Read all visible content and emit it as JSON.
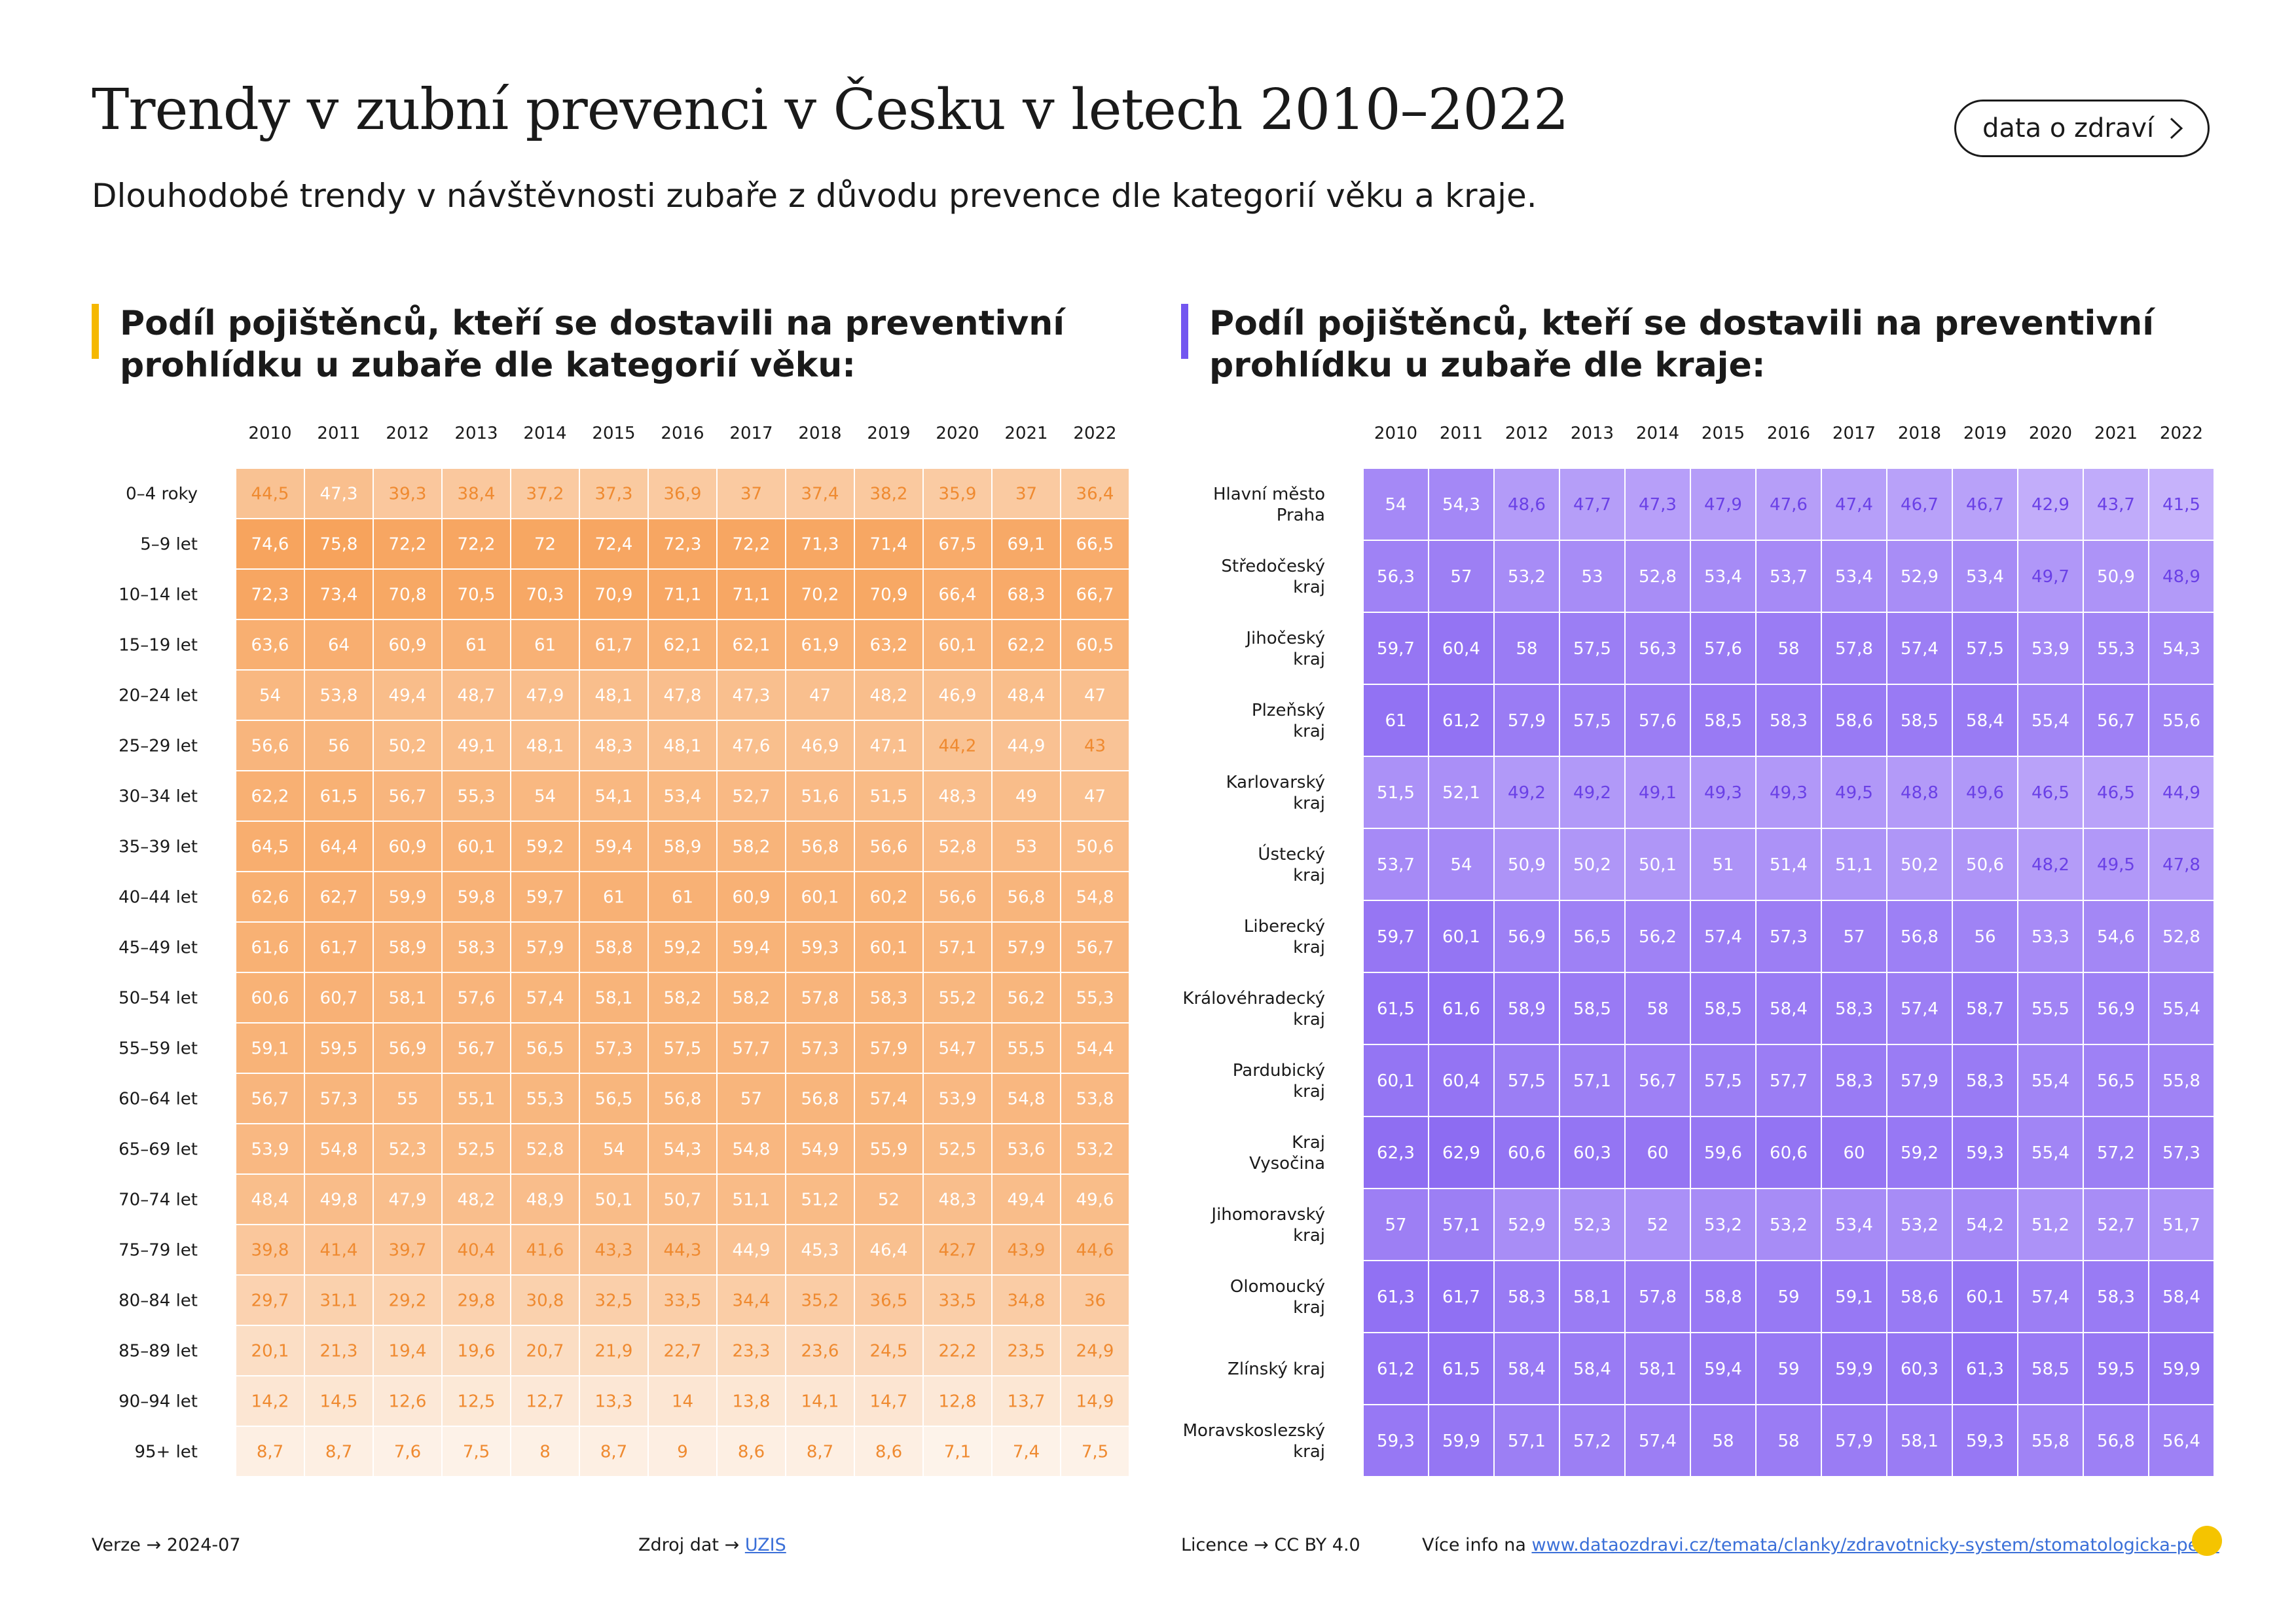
{
  "title": "Trendy v zubní prevenci v Česku v letech 2010–2022",
  "subtitle": "Dlouhodobé trendy v návštěvnosti zubaře z důvodu prevence dle kategorií věku a kraje.",
  "brand_button": {
    "label": "data o zdraví",
    "icon": "chevron-right-icon"
  },
  "colors": {
    "left_accent": "#f5b800",
    "right_accent": "#7356f0",
    "left_dark": "#f7a35c",
    "left_light": "#fdf3ea",
    "left_text_dark": "#ffffff",
    "left_text_light": "#ef8a30",
    "right_dark": "#8d6cf2",
    "right_light": "#c6b2fb",
    "right_text_dark": "#ffffff",
    "right_text_light": "#6a40e6"
  },
  "chart_data": [
    {
      "type": "heatmap",
      "title": "Podíl pojištěnců, kteří se dostavili na preventivní prohlídku u zubaře dle kategorií věku:",
      "x": [
        "2010",
        "2011",
        "2012",
        "2013",
        "2014",
        "2015",
        "2016",
        "2017",
        "2018",
        "2019",
        "2020",
        "2021",
        "2022"
      ],
      "y": [
        "0–4 roky",
        "5–9 let",
        "10–14 let",
        "15–19 let",
        "20–24 let",
        "25–29 let",
        "30–34 let",
        "35–39 let",
        "40–44 let",
        "45–49 let",
        "50–54 let",
        "55–59 let",
        "60–64 let",
        "65–69 let",
        "70–74 let",
        "75–79 let",
        "80–84 let",
        "85–89 let",
        "90–94 let",
        "95+ let"
      ],
      "values": [
        [
          "44,5",
          "47,3",
          "39,3",
          "38,4",
          "37,2",
          "37,3",
          "36,9",
          "37",
          "37,4",
          "38,2",
          "35,9",
          "37",
          "36,4"
        ],
        [
          "74,6",
          "75,8",
          "72,2",
          "72,2",
          "72",
          "72,4",
          "72,3",
          "72,2",
          "71,3",
          "71,4",
          "67,5",
          "69,1",
          "66,5"
        ],
        [
          "72,3",
          "73,4",
          "70,8",
          "70,5",
          "70,3",
          "70,9",
          "71,1",
          "71,1",
          "70,2",
          "70,9",
          "66,4",
          "68,3",
          "66,7"
        ],
        [
          "63,6",
          "64",
          "60,9",
          "61",
          "61",
          "61,7",
          "62,1",
          "62,1",
          "61,9",
          "63,2",
          "60,1",
          "62,2",
          "60,5"
        ],
        [
          "54",
          "53,8",
          "49,4",
          "48,7",
          "47,9",
          "48,1",
          "47,8",
          "47,3",
          "47",
          "48,2",
          "46,9",
          "48,4",
          "47"
        ],
        [
          "56,6",
          "56",
          "50,2",
          "49,1",
          "48,1",
          "48,3",
          "48,1",
          "47,6",
          "46,9",
          "47,1",
          "44,2",
          "44,9",
          "43"
        ],
        [
          "62,2",
          "61,5",
          "56,7",
          "55,3",
          "54",
          "54,1",
          "53,4",
          "52,7",
          "51,6",
          "51,5",
          "48,3",
          "49",
          "47"
        ],
        [
          "64,5",
          "64,4",
          "60,9",
          "60,1",
          "59,2",
          "59,4",
          "58,9",
          "58,2",
          "56,8",
          "56,6",
          "52,8",
          "53",
          "50,6"
        ],
        [
          "62,6",
          "62,7",
          "59,9",
          "59,8",
          "59,7",
          "61",
          "61",
          "60,9",
          "60,1",
          "60,2",
          "56,6",
          "56,8",
          "54,8"
        ],
        [
          "61,6",
          "61,7",
          "58,9",
          "58,3",
          "57,9",
          "58,8",
          "59,2",
          "59,4",
          "59,3",
          "60,1",
          "57,1",
          "57,9",
          "56,7"
        ],
        [
          "60,6",
          "60,7",
          "58,1",
          "57,6",
          "57,4",
          "58,1",
          "58,2",
          "58,2",
          "57,8",
          "58,3",
          "55,2",
          "56,2",
          "55,3"
        ],
        [
          "59,1",
          "59,5",
          "56,9",
          "56,7",
          "56,5",
          "57,3",
          "57,5",
          "57,7",
          "57,3",
          "57,9",
          "54,7",
          "55,5",
          "54,4"
        ],
        [
          "56,7",
          "57,3",
          "55",
          "55,1",
          "55,3",
          "56,5",
          "56,8",
          "57",
          "56,8",
          "57,4",
          "53,9",
          "54,8",
          "53,8"
        ],
        [
          "53,9",
          "54,8",
          "52,3",
          "52,5",
          "52,8",
          "54",
          "54,3",
          "54,8",
          "54,9",
          "55,9",
          "52,5",
          "53,6",
          "53,2"
        ],
        [
          "48,4",
          "49,8",
          "47,9",
          "48,2",
          "48,9",
          "50,1",
          "50,7",
          "51,1",
          "51,2",
          "52",
          "48,3",
          "49,4",
          "49,6"
        ],
        [
          "39,8",
          "41,4",
          "39,7",
          "40,4",
          "41,6",
          "43,3",
          "44,3",
          "44,9",
          "45,3",
          "46,4",
          "42,7",
          "43,9",
          "44,6"
        ],
        [
          "29,7",
          "31,1",
          "29,2",
          "29,8",
          "30,8",
          "32,5",
          "33,5",
          "34,4",
          "35,2",
          "36,5",
          "33,5",
          "34,8",
          "36"
        ],
        [
          "20,1",
          "21,3",
          "19,4",
          "19,6",
          "20,7",
          "21,9",
          "22,7",
          "23,3",
          "23,6",
          "24,5",
          "22,2",
          "23,5",
          "24,9"
        ],
        [
          "14,2",
          "14,5",
          "12,6",
          "12,5",
          "12,7",
          "13,3",
          "14",
          "13,8",
          "14,1",
          "14,7",
          "12,8",
          "13,7",
          "14,9"
        ],
        [
          "8,7",
          "8,7",
          "7,6",
          "7,5",
          "8",
          "8,7",
          "9",
          "8,6",
          "8,7",
          "8,6",
          "7,1",
          "7,4",
          "7,5"
        ]
      ]
    },
    {
      "type": "heatmap",
      "title": "Podíl pojištěnců, kteří se dostavili na preventivní prohlídku u zubaře dle kraje:",
      "x": [
        "2010",
        "2011",
        "2012",
        "2013",
        "2014",
        "2015",
        "2016",
        "2017",
        "2018",
        "2019",
        "2020",
        "2021",
        "2022"
      ],
      "y": [
        [
          "Hlavní město",
          "Praha"
        ],
        [
          "Středočeský",
          "kraj"
        ],
        [
          "Jihočeský",
          "kraj"
        ],
        [
          "Plzeňský",
          "kraj"
        ],
        [
          "Karlovarský",
          "kraj"
        ],
        [
          "Ústecký",
          "kraj"
        ],
        [
          "Liberecký",
          "kraj"
        ],
        [
          "Královéhradecký",
          "kraj"
        ],
        [
          "Pardubický",
          "kraj"
        ],
        [
          "Kraj",
          "Vysočina"
        ],
        [
          "Jihomoravský",
          "kraj"
        ],
        [
          "Olomoucký",
          "kraj"
        ],
        [
          "Zlínský kraj"
        ],
        [
          "Moravskoslezský",
          "kraj"
        ]
      ],
      "values": [
        [
          "54",
          "54,3",
          "48,6",
          "47,7",
          "47,3",
          "47,9",
          "47,6",
          "47,4",
          "46,7",
          "46,7",
          "42,9",
          "43,7",
          "41,5"
        ],
        [
          "56,3",
          "57",
          "53,2",
          "53",
          "52,8",
          "53,4",
          "53,7",
          "53,4",
          "52,9",
          "53,4",
          "49,7",
          "50,9",
          "48,9"
        ],
        [
          "59,7",
          "60,4",
          "58",
          "57,5",
          "56,3",
          "57,6",
          "58",
          "57,8",
          "57,4",
          "57,5",
          "53,9",
          "55,3",
          "54,3"
        ],
        [
          "61",
          "61,2",
          "57,9",
          "57,5",
          "57,6",
          "58,5",
          "58,3",
          "58,6",
          "58,5",
          "58,4",
          "55,4",
          "56,7",
          "55,6"
        ],
        [
          "51,5",
          "52,1",
          "49,2",
          "49,2",
          "49,1",
          "49,3",
          "49,3",
          "49,5",
          "48,8",
          "49,6",
          "46,5",
          "46,5",
          "44,9"
        ],
        [
          "53,7",
          "54",
          "50,9",
          "50,2",
          "50,1",
          "51",
          "51,4",
          "51,1",
          "50,2",
          "50,6",
          "48,2",
          "49,5",
          "47,8"
        ],
        [
          "59,7",
          "60,1",
          "56,9",
          "56,5",
          "56,2",
          "57,4",
          "57,3",
          "57",
          "56,8",
          "56",
          "53,3",
          "54,6",
          "52,8"
        ],
        [
          "61,5",
          "61,6",
          "58,9",
          "58,5",
          "58",
          "58,5",
          "58,4",
          "58,3",
          "57,4",
          "58,7",
          "55,5",
          "56,9",
          "55,4"
        ],
        [
          "60,1",
          "60,4",
          "57,5",
          "57,1",
          "56,7",
          "57,5",
          "57,7",
          "58,3",
          "57,9",
          "58,3",
          "55,4",
          "56,5",
          "55,8"
        ],
        [
          "62,3",
          "62,9",
          "60,6",
          "60,3",
          "60",
          "59,6",
          "60,6",
          "60",
          "59,2",
          "59,3",
          "55,4",
          "57,2",
          "57,3"
        ],
        [
          "57",
          "57,1",
          "52,9",
          "52,3",
          "52",
          "53,2",
          "53,2",
          "53,4",
          "53,2",
          "54,2",
          "51,2",
          "52,7",
          "51,7"
        ],
        [
          "61,3",
          "61,7",
          "58,3",
          "58,1",
          "57,8",
          "58,8",
          "59",
          "59,1",
          "58,6",
          "60,1",
          "57,4",
          "58,3",
          "58,4"
        ],
        [
          "61,2",
          "61,5",
          "58,4",
          "58,4",
          "58,1",
          "59,4",
          "59",
          "59,9",
          "60,3",
          "61,3",
          "58,5",
          "59,5",
          "59,9"
        ],
        [
          "59,3",
          "59,9",
          "57,1",
          "57,2",
          "57,4",
          "58",
          "58",
          "57,9",
          "58,1",
          "59,3",
          "55,8",
          "56,8",
          "56,4"
        ]
      ]
    }
  ],
  "footer": {
    "version_label": "Verze",
    "version_value": "2024-07",
    "source_label": "Zdroj dat",
    "source_value": "UZIS",
    "license_label": "Licence",
    "license_value": "CC BY 4.0",
    "more_label": "Více info na",
    "more_url": "www.dataozdravi.cz/temata/clanky/zdravotnicky-system/stomatologicka-pece",
    "arrow": "→"
  }
}
